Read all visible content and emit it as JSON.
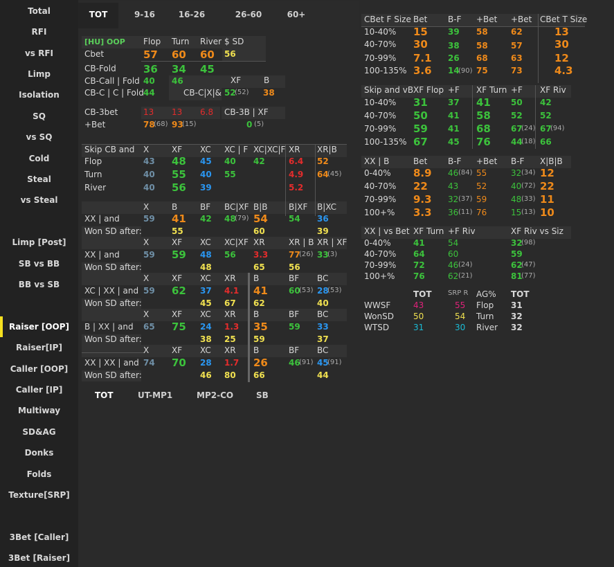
{
  "sidebar": [
    "Total",
    "RFI",
    "vs RFI",
    "Limp",
    "Isolation",
    "SQ",
    "vs SQ",
    "Cold",
    "Steal",
    "vs Steal",
    "Limp [Post]",
    "SB vs BB",
    "BB vs SB",
    "Raiser [OOP]",
    "Raiser[IP]",
    "Caller [OOP]",
    "Caller [IP]",
    "Multiway",
    "SD&AG",
    "Donks",
    "Folds",
    "Texture[SRP]",
    "3Bet [Caller]",
    "3Bet [Raiser]"
  ],
  "active_item": "Raiser [OOP]",
  "accent_color": "#f5e020",
  "tabs": [
    "TOT",
    "9-16",
    "16-26",
    "26-60",
    "60+"
  ],
  "bottom_tabs": [
    "TOT",
    "UT-MP1",
    "MP2-CO",
    "SB"
  ],
  "cells": [
    {
      "t": "[HU] OOP",
      "k": "lg",
      "s": "sm2"
    },
    {
      "t": "Flop",
      "k": "w"
    },
    {
      "t": "Turn",
      "k": "w"
    },
    {
      "t": "River",
      "k": "w"
    },
    {
      "t": "$ SD",
      "k": "w"
    },
    {
      "t": "Cbet",
      "k": "w"
    },
    {
      "t": "57",
      "k": "o",
      "s": "big"
    },
    {
      "t": "60",
      "k": "o",
      "s": "big"
    },
    {
      "t": "60",
      "k": "o",
      "s": "big"
    },
    {
      "t": "56",
      "k": "y",
      "s": "med"
    },
    {
      "t": "CB-Fold",
      "k": "w"
    },
    {
      "t": "36",
      "k": "g",
      "s": "big"
    },
    {
      "t": "34",
      "k": "g",
      "s": "big"
    },
    {
      "t": "45",
      "k": "g",
      "s": "big"
    },
    {
      "t": "CB-Call | Fold",
      "k": "w"
    },
    {
      "t": "40",
      "k": "g",
      "s": "med"
    },
    {
      "t": "46",
      "k": "g",
      "s": "med"
    },
    {
      "t": "XF",
      "k": "w"
    },
    {
      "t": "B",
      "k": "w"
    },
    {
      "t": "CB-C | C | Fold",
      "k": "w"
    },
    {
      "t": "44",
      "k": "g",
      "s": "med"
    },
    {
      "t": "CB-C|X|&",
      "k": "w"
    },
    {
      "t": "52",
      "k": "g",
      "s": "med"
    },
    {
      "t": "(52)",
      "k": "sm"
    },
    {
      "t": "38",
      "k": "o",
      "s": "med"
    },
    {
      "t": "CB-3bet",
      "k": "w"
    },
    {
      "t": "13",
      "k": "r"
    },
    {
      "t": "13",
      "k": "r"
    },
    {
      "t": "6.8",
      "k": "r"
    },
    {
      "t": "CB-3B | XF",
      "k": "w"
    },
    {
      "t": "+Bet",
      "k": "w"
    },
    {
      "t": "78",
      "k": "o",
      "s": "med"
    },
    {
      "t": "(68)",
      "k": "sm"
    },
    {
      "t": "93",
      "k": "o",
      "s": "med"
    },
    {
      "t": "(15)",
      "k": "sm"
    },
    {
      "t": "0",
      "k": "g",
      "s": "med"
    },
    {
      "t": "(5)",
      "k": "sm"
    },
    {
      "t": "Skip CB and",
      "k": "w"
    },
    {
      "t": "X",
      "k": "w"
    },
    {
      "t": "XF",
      "k": "w"
    },
    {
      "t": "XC",
      "k": "w"
    },
    {
      "t": "XC | F",
      "k": "w"
    },
    {
      "t": "XC|XC|F",
      "k": "w"
    },
    {
      "t": "XR",
      "k": "w"
    },
    {
      "t": "XR|B",
      "k": "w"
    },
    {
      "t": "Flop",
      "k": "w"
    },
    {
      "t": "43",
      "k": "gy",
      "s": "med"
    },
    {
      "t": "48",
      "k": "g",
      "s": "big"
    },
    {
      "t": "45",
      "k": "b",
      "s": "med"
    },
    {
      "t": "40",
      "k": "g",
      "s": "med"
    },
    {
      "t": "42",
      "k": "g",
      "s": "med"
    },
    {
      "t": "6.4",
      "k": "r",
      "s": "med"
    },
    {
      "t": "52",
      "k": "o",
      "s": "med"
    },
    {
      "t": "Turn",
      "k": "w"
    },
    {
      "t": "40",
      "k": "gy",
      "s": "med"
    },
    {
      "t": "55",
      "k": "g",
      "s": "big"
    },
    {
      "t": "40",
      "k": "b",
      "s": "med"
    },
    {
      "t": "55",
      "k": "g",
      "s": "med"
    },
    {
      "t": "4.9",
      "k": "r",
      "s": "med"
    },
    {
      "t": "64",
      "k": "o",
      "s": "med"
    },
    {
      "t": "(45)",
      "k": "sm"
    },
    {
      "t": "River",
      "k": "w"
    },
    {
      "t": "40",
      "k": "gy",
      "s": "med"
    },
    {
      "t": "56",
      "k": "g",
      "s": "big"
    },
    {
      "t": "39",
      "k": "b",
      "s": "med"
    },
    {
      "t": "5.2",
      "k": "r",
      "s": "med"
    },
    {
      "t": "X",
      "k": "w"
    },
    {
      "t": "B",
      "k": "w"
    },
    {
      "t": "BF",
      "k": "w"
    },
    {
      "t": "BC|XF",
      "k": "w"
    },
    {
      "t": "B|B",
      "k": "w"
    },
    {
      "t": "B|XF",
      "k": "w"
    },
    {
      "t": "B|XC",
      "k": "w"
    },
    {
      "t": "XX | and",
      "k": "w"
    },
    {
      "t": "59",
      "k": "gy",
      "s": "med"
    },
    {
      "t": "41",
      "k": "o",
      "s": "big"
    },
    {
      "t": "42",
      "k": "g",
      "s": "med"
    },
    {
      "t": "48",
      "k": "g",
      "s": "med"
    },
    {
      "t": "(79)",
      "k": "sm"
    },
    {
      "t": "54",
      "k": "o",
      "s": "big"
    },
    {
      "t": "54",
      "k": "g",
      "s": "med"
    },
    {
      "t": "36",
      "k": "b",
      "s": "med"
    },
    {
      "t": "Won SD after:",
      "k": "w"
    },
    {
      "t": "55",
      "k": "y",
      "s": "med"
    },
    {
      "t": "60",
      "k": "y",
      "s": "med"
    },
    {
      "t": "39",
      "k": "y",
      "s": "med"
    },
    {
      "t": "X",
      "k": "w"
    },
    {
      "t": "XF",
      "k": "w"
    },
    {
      "t": "XC",
      "k": "w"
    },
    {
      "t": "XC|XF",
      "k": "w"
    },
    {
      "t": "XR",
      "k": "w"
    },
    {
      "t": "XR | B",
      "k": "w"
    },
    {
      "t": "XR | XF",
      "k": "w"
    },
    {
      "t": "XX | and",
      "k": "w"
    },
    {
      "t": "59",
      "k": "gy",
      "s": "med"
    },
    {
      "t": "59",
      "k": "g",
      "s": "big"
    },
    {
      "t": "48",
      "k": "b",
      "s": "med"
    },
    {
      "t": "56",
      "k": "g",
      "s": "med"
    },
    {
      "t": "3.3",
      "k": "r",
      "s": "med"
    },
    {
      "t": "77",
      "k": "o",
      "s": "med"
    },
    {
      "t": "(26)",
      "k": "sm"
    },
    {
      "t": "33",
      "k": "g",
      "s": "med"
    },
    {
      "t": "(3)",
      "k": "sm"
    },
    {
      "t": "Won SD after:",
      "k": "w"
    },
    {
      "t": "48",
      "k": "y",
      "s": "med"
    },
    {
      "t": "65",
      "k": "y",
      "s": "med"
    },
    {
      "t": "56",
      "k": "y",
      "s": "med"
    },
    {
      "t": "X",
      "k": "w"
    },
    {
      "t": "XF",
      "k": "w"
    },
    {
      "t": "XC",
      "k": "w"
    },
    {
      "t": "XR",
      "k": "w"
    },
    {
      "t": "B",
      "k": "w"
    },
    {
      "t": "BF",
      "k": "w"
    },
    {
      "t": "BC",
      "k": "w"
    },
    {
      "t": "XC | XX |  and",
      "k": "w"
    },
    {
      "t": "59",
      "k": "gy",
      "s": "med"
    },
    {
      "t": "62",
      "k": "g",
      "s": "big"
    },
    {
      "t": "37",
      "k": "b",
      "s": "med"
    },
    {
      "t": "4.1",
      "k": "r",
      "s": "med"
    },
    {
      "t": "41",
      "k": "o",
      "s": "big"
    },
    {
      "t": "60",
      "k": "g",
      "s": "med"
    },
    {
      "t": "(53)",
      "k": "sm"
    },
    {
      "t": "28",
      "k": "b",
      "s": "med"
    },
    {
      "t": "(53)",
      "k": "sm"
    },
    {
      "t": "Won SD after:",
      "k": "w"
    },
    {
      "t": "45",
      "k": "y",
      "s": "med"
    },
    {
      "t": "67",
      "k": "y",
      "s": "med"
    },
    {
      "t": "62",
      "k": "y",
      "s": "med"
    },
    {
      "t": "40",
      "k": "y",
      "s": "med"
    },
    {
      "t": "X",
      "k": "w"
    },
    {
      "t": "XF",
      "k": "w"
    },
    {
      "t": "XC",
      "k": "w"
    },
    {
      "t": "XR",
      "k": "w"
    },
    {
      "t": "B",
      "k": "w"
    },
    {
      "t": "BF",
      "k": "w"
    },
    {
      "t": "BC",
      "k": "w"
    },
    {
      "t": "B | XX | and",
      "k": "w"
    },
    {
      "t": "65",
      "k": "gy",
      "s": "med"
    },
    {
      "t": "75",
      "k": "g",
      "s": "big"
    },
    {
      "t": "24",
      "k": "b",
      "s": "med"
    },
    {
      "t": "1.3",
      "k": "r",
      "s": "med"
    },
    {
      "t": "35",
      "k": "o",
      "s": "big"
    },
    {
      "t": "59",
      "k": "g",
      "s": "med"
    },
    {
      "t": "33",
      "k": "b",
      "s": "med"
    },
    {
      "t": "Won SD after:",
      "k": "w"
    },
    {
      "t": "38",
      "k": "y",
      "s": "med"
    },
    {
      "t": "25",
      "k": "y",
      "s": "med"
    },
    {
      "t": "59",
      "k": "y",
      "s": "med"
    },
    {
      "t": "37",
      "k": "y",
      "s": "med"
    },
    {
      "t": "X",
      "k": "w"
    },
    {
      "t": "XF",
      "k": "w"
    },
    {
      "t": "XC",
      "k": "w"
    },
    {
      "t": "XR",
      "k": "w"
    },
    {
      "t": "B",
      "k": "w"
    },
    {
      "t": "BF",
      "k": "w"
    },
    {
      "t": "BC",
      "k": "w"
    },
    {
      "t": "XX | XX | and",
      "k": "w"
    },
    {
      "t": "74",
      "k": "gy",
      "s": "med"
    },
    {
      "t": "70",
      "k": "g",
      "s": "big"
    },
    {
      "t": "28",
      "k": "b",
      "s": "med"
    },
    {
      "t": "1.7",
      "k": "r",
      "s": "med"
    },
    {
      "t": "26",
      "k": "o",
      "s": "big"
    },
    {
      "t": "46",
      "k": "g",
      "s": "med"
    },
    {
      "t": "(91)",
      "k": "sm"
    },
    {
      "t": "45",
      "k": "b",
      "s": "med"
    },
    {
      "t": "(91)",
      "k": "sm"
    },
    {
      "t": "Won SD after:",
      "k": "w"
    },
    {
      "t": "46",
      "k": "y",
      "s": "med"
    },
    {
      "t": "80",
      "k": "y",
      "s": "med"
    },
    {
      "t": "66",
      "k": "y",
      "s": "med"
    },
    {
      "t": "44",
      "k": "y",
      "s": "med"
    },
    {
      "t": "CBet F Size",
      "k": "w"
    },
    {
      "t": "Bet",
      "k": "w"
    },
    {
      "t": "B-F",
      "k": "w"
    },
    {
      "t": "+Bet",
      "k": "w"
    },
    {
      "t": "+Bet",
      "k": "w"
    },
    {
      "t": "CBet T Size",
      "k": "w"
    },
    {
      "t": "10-40%",
      "k": "w"
    },
    {
      "t": "15",
      "k": "o",
      "s": "big"
    },
    {
      "t": "39",
      "k": "g",
      "s": "med"
    },
    {
      "t": "58",
      "k": "o",
      "s": "med"
    },
    {
      "t": "62",
      "k": "o",
      "s": "med"
    },
    {
      "t": "13",
      "k": "o",
      "s": "big"
    },
    {
      "t": "40-70%",
      "k": "w"
    },
    {
      "t": "30",
      "k": "o",
      "s": "big"
    },
    {
      "t": "38",
      "k": "g",
      "s": "med"
    },
    {
      "t": "58",
      "k": "o",
      "s": "med"
    },
    {
      "t": "57",
      "k": "o",
      "s": "med"
    },
    {
      "t": "30",
      "k": "o",
      "s": "big"
    },
    {
      "t": "70-99%",
      "k": "w"
    },
    {
      "t": "7.1",
      "k": "o",
      "s": "big"
    },
    {
      "t": "26",
      "k": "g",
      "s": "med"
    },
    {
      "t": "68",
      "k": "o",
      "s": "med"
    },
    {
      "t": "63",
      "k": "o",
      "s": "med"
    },
    {
      "t": "12",
      "k": "o",
      "s": "big"
    },
    {
      "t": "100-135%",
      "k": "w"
    },
    {
      "t": "3.6",
      "k": "o",
      "s": "big"
    },
    {
      "t": "14",
      "k": "g",
      "s": "med"
    },
    {
      "t": "(90)",
      "k": "sm"
    },
    {
      "t": "75",
      "k": "o",
      "s": "med"
    },
    {
      "t": "73",
      "k": "o",
      "s": "med"
    },
    {
      "t": "4.3",
      "k": "o",
      "s": "big"
    },
    {
      "t": "Skip and vB",
      "k": "w"
    },
    {
      "t": "XF Flop",
      "k": "w"
    },
    {
      "t": "+F",
      "k": "w"
    },
    {
      "t": "XF Turn",
      "k": "w"
    },
    {
      "t": "+F",
      "k": "w"
    },
    {
      "t": "XF Riv",
      "k": "w"
    },
    {
      "t": "10-40%",
      "k": "w"
    },
    {
      "t": "31",
      "k": "g",
      "s": "big"
    },
    {
      "t": "37",
      "k": "g",
      "s": "med"
    },
    {
      "t": "41",
      "k": "g",
      "s": "big"
    },
    {
      "t": "50",
      "k": "g",
      "s": "med"
    },
    {
      "t": "42",
      "k": "g",
      "s": "med"
    },
    {
      "t": "40-70%",
      "k": "w"
    },
    {
      "t": "50",
      "k": "g",
      "s": "big"
    },
    {
      "t": "41",
      "k": "g",
      "s": "med"
    },
    {
      "t": "58",
      "k": "g",
      "s": "big"
    },
    {
      "t": "52",
      "k": "g",
      "s": "med"
    },
    {
      "t": "52",
      "k": "g",
      "s": "med"
    },
    {
      "t": "70-99%",
      "k": "w"
    },
    {
      "t": "59",
      "k": "g",
      "s": "big"
    },
    {
      "t": "41",
      "k": "g",
      "s": "med"
    },
    {
      "t": "68",
      "k": "g",
      "s": "big"
    },
    {
      "t": "67",
      "k": "g",
      "s": "med"
    },
    {
      "t": "(24)",
      "k": "sm"
    },
    {
      "t": "67",
      "k": "g",
      "s": "med"
    },
    {
      "t": "(94)",
      "k": "sm"
    },
    {
      "t": "100-135%",
      "k": "w"
    },
    {
      "t": "67",
      "k": "g",
      "s": "big"
    },
    {
      "t": "45",
      "k": "g",
      "s": "med"
    },
    {
      "t": "76",
      "k": "g",
      "s": "big"
    },
    {
      "t": "44",
      "k": "g",
      "s": "med"
    },
    {
      "t": "(18)",
      "k": "sm"
    },
    {
      "t": "66",
      "k": "g",
      "s": "med"
    },
    {
      "t": "XX | B",
      "k": "w"
    },
    {
      "t": "Bet",
      "k": "w"
    },
    {
      "t": "B-F",
      "k": "w"
    },
    {
      "t": "+Bet",
      "k": "w"
    },
    {
      "t": "B-F",
      "k": "w"
    },
    {
      "t": "X|B|B",
      "k": "w"
    },
    {
      "t": "0-40%",
      "k": "w"
    },
    {
      "t": "8.9",
      "k": "o",
      "s": "big"
    },
    {
      "t": "46",
      "k": "g"
    },
    {
      "t": "(84)",
      "k": "sm"
    },
    {
      "t": "55",
      "k": "o"
    },
    {
      "t": "32",
      "k": "g"
    },
    {
      "t": "(34)",
      "k": "sm"
    },
    {
      "t": "12",
      "k": "o",
      "s": "big"
    },
    {
      "t": "40-70%",
      "k": "w"
    },
    {
      "t": "22",
      "k": "o",
      "s": "big"
    },
    {
      "t": "43",
      "k": "g"
    },
    {
      "t": "52",
      "k": "o"
    },
    {
      "t": "40",
      "k": "g"
    },
    {
      "t": "(72)",
      "k": "sm"
    },
    {
      "t": "22",
      "k": "o",
      "s": "big"
    },
    {
      "t": "70-99%",
      "k": "w"
    },
    {
      "t": "9.3",
      "k": "o",
      "s": "big"
    },
    {
      "t": "32",
      "k": "g"
    },
    {
      "t": "(37)",
      "k": "sm"
    },
    {
      "t": "59",
      "k": "o"
    },
    {
      "t": "48",
      "k": "g"
    },
    {
      "t": "(33)",
      "k": "sm"
    },
    {
      "t": "11",
      "k": "o",
      "s": "big"
    },
    {
      "t": "100+%",
      "k": "w"
    },
    {
      "t": "3.3",
      "k": "o",
      "s": "big"
    },
    {
      "t": "36",
      "k": "g"
    },
    {
      "t": "(11)",
      "k": "sm"
    },
    {
      "t": "76",
      "k": "o"
    },
    {
      "t": "15",
      "k": "g"
    },
    {
      "t": "(13)",
      "k": "sm"
    },
    {
      "t": "10",
      "k": "o",
      "s": "big"
    },
    {
      "t": "XX | vs Bet",
      "k": "w"
    },
    {
      "t": "XF Turn",
      "k": "w"
    },
    {
      "t": "+F Riv",
      "k": "w"
    },
    {
      "t": "XF Riv vs Siz",
      "k": "w"
    },
    {
      "t": "0-40%",
      "k": "w"
    },
    {
      "t": "41",
      "k": "g",
      "s": "med"
    },
    {
      "t": "54",
      "k": "g"
    },
    {
      "t": "32",
      "k": "g",
      "s": "med"
    },
    {
      "t": "(98)",
      "k": "sm"
    },
    {
      "t": "40-70%",
      "k": "w"
    },
    {
      "t": "64",
      "k": "g",
      "s": "med"
    },
    {
      "t": "60",
      "k": "g"
    },
    {
      "t": "59",
      "k": "g",
      "s": "med"
    },
    {
      "t": "70-99%",
      "k": "w"
    },
    {
      "t": "72",
      "k": "g",
      "s": "med"
    },
    {
      "t": "46",
      "k": "g"
    },
    {
      "t": "(24)",
      "k": "sm"
    },
    {
      "t": "62",
      "k": "g",
      "s": "med"
    },
    {
      "t": "(47)",
      "k": "sm"
    },
    {
      "t": "100+%",
      "k": "w"
    },
    {
      "t": "76",
      "k": "g",
      "s": "med"
    },
    {
      "t": "62",
      "k": "g"
    },
    {
      "t": "(21)",
      "k": "sm"
    },
    {
      "t": "81",
      "k": "g",
      "s": "med"
    },
    {
      "t": "(77)",
      "k": "sm"
    },
    {
      "t": "TOT",
      "k": "w",
      "s": "med"
    },
    {
      "t": "SRP R",
      "k": "sm"
    },
    {
      "t": "AG%",
      "k": "w"
    },
    {
      "t": "TOT",
      "k": "w",
      "s": "med"
    },
    {
      "t": "WWSF",
      "k": "w"
    },
    {
      "t": "43",
      "k": "m"
    },
    {
      "t": "55",
      "k": "m"
    },
    {
      "t": "Flop",
      "k": "w"
    },
    {
      "t": "31",
      "k": "w",
      "s": "med"
    },
    {
      "t": "WonSD",
      "k": "w"
    },
    {
      "t": "50",
      "k": "y"
    },
    {
      "t": "54",
      "k": "y"
    },
    {
      "t": "Turn",
      "k": "w"
    },
    {
      "t": "32",
      "k": "w",
      "s": "med"
    },
    {
      "t": "WTSD",
      "k": "w"
    },
    {
      "t": "31",
      "k": "cy"
    },
    {
      "t": "30",
      "k": "cy"
    },
    {
      "t": "River",
      "k": "w"
    },
    {
      "t": "32",
      "k": "w",
      "s": "med"
    }
  ]
}
